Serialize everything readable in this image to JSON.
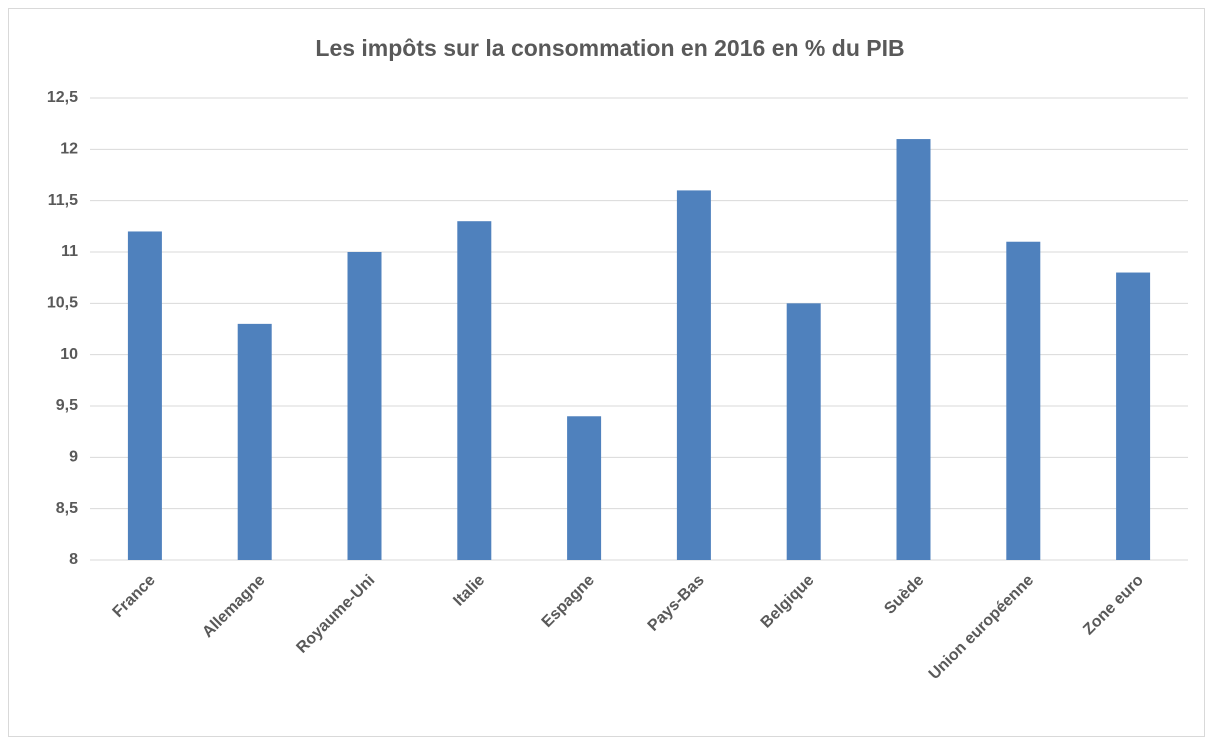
{
  "chart_data": {
    "type": "bar",
    "title": "Les impôts sur la consommation en 2016 en % du PIB",
    "categories": [
      "France",
      "Allemagne",
      "Royaume-Uni",
      "Italie",
      "Espagne",
      "Pays-Bas",
      "Belgique",
      "Suède",
      "Union européenne",
      "Zone euro"
    ],
    "values": [
      11.2,
      10.3,
      11,
      11.3,
      9.4,
      11.6,
      10.5,
      12.1,
      11.1,
      10.8
    ],
    "color": "#4f81bd",
    "ylim": [
      8,
      12.5
    ],
    "yticks": [
      8,
      {
        "value": 8.5,
        "label": "8,5"
      },
      9,
      {
        "value": 9.5,
        "label": "9,5"
      },
      10,
      {
        "value": 10.5,
        "label": "10,5"
      },
      11,
      {
        "value": 11.5,
        "label": "11,5"
      },
      12,
      {
        "value": 12.5,
        "label": "12,5"
      }
    ],
    "grid": true
  }
}
